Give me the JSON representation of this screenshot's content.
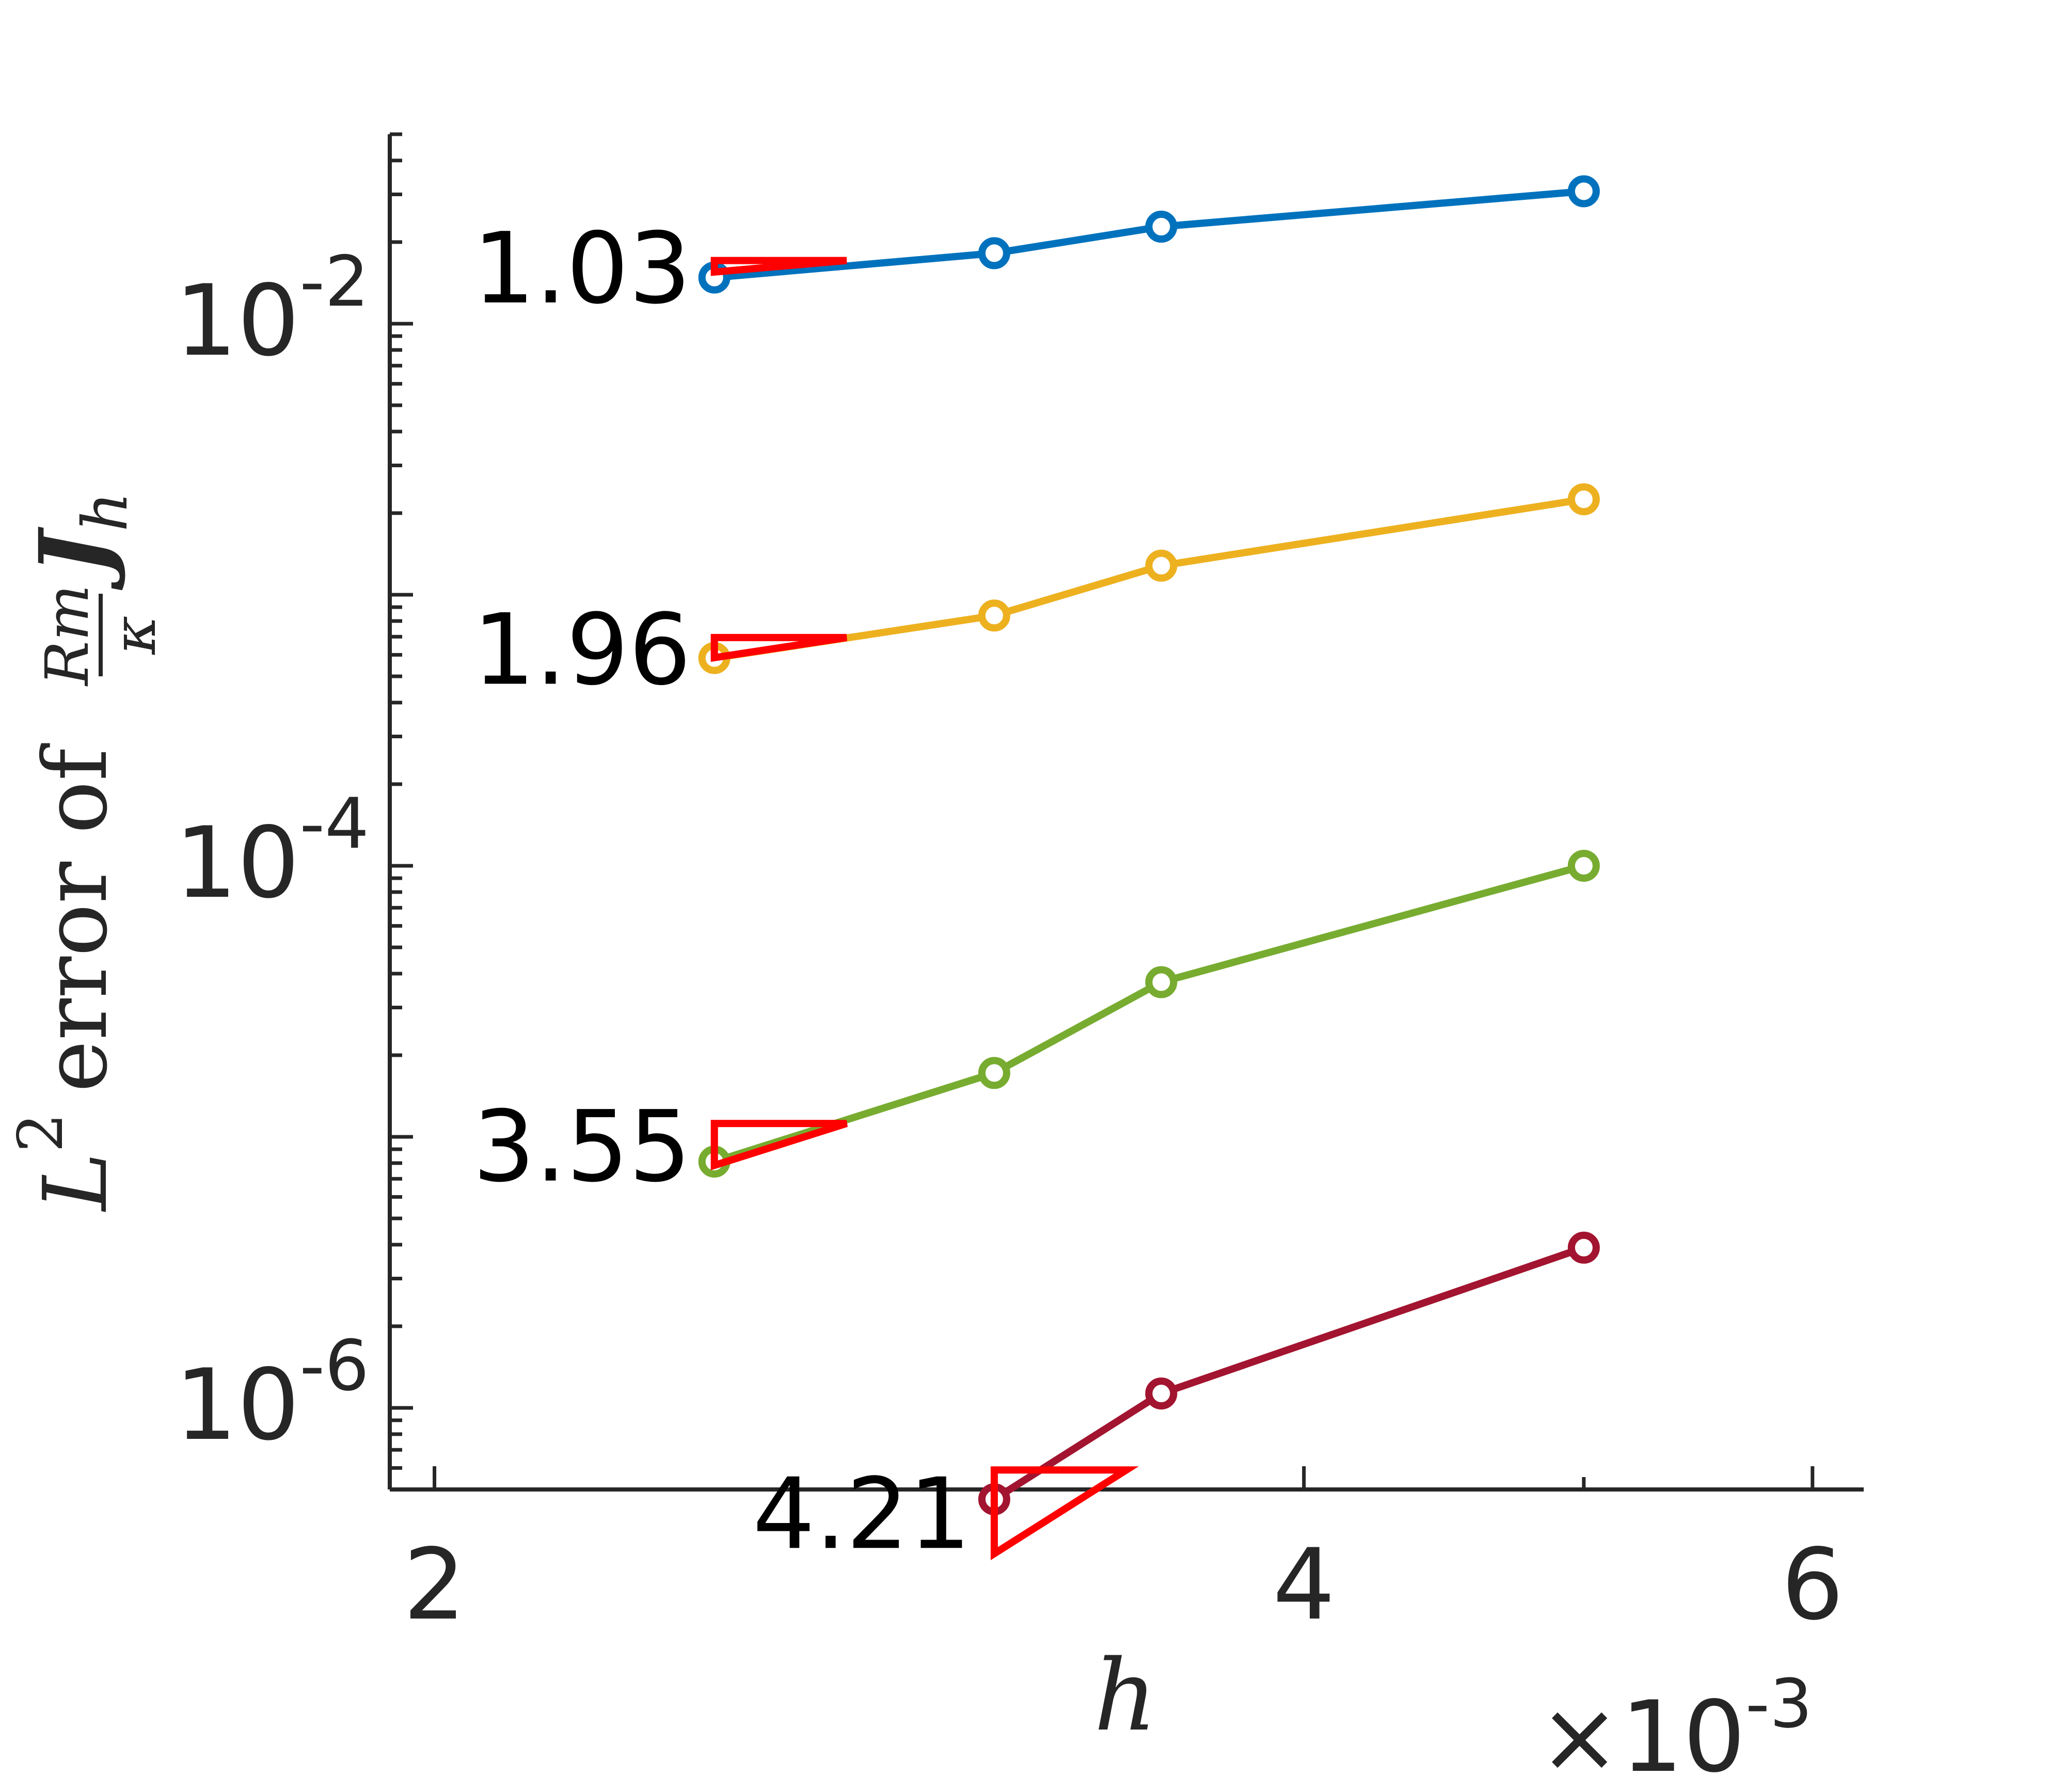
{
  "chart_data": {
    "type": "line",
    "x_scale": "log",
    "y_scale": "log",
    "xlim": [
      0.00193,
      0.00625
    ],
    "ylim": [
      5e-07,
      0.05
    ],
    "xlabel": "h",
    "x_multiplier_label": "10",
    "x_multiplier_exp": "-3",
    "ylabel_parts": {
      "L": "L",
      "sq": "2",
      "error_of": "error of",
      "num": "Rm",
      "den": "κ",
      "J": "J",
      "h": "h"
    },
    "x_ticks": [
      {
        "value": 0.002,
        "label": "2"
      },
      {
        "value": 0.004,
        "label": "4"
      },
      {
        "value": 0.006,
        "label": "6"
      }
    ],
    "y_ticks": [
      {
        "value": 1e-06,
        "base": "10",
        "exp": "-6"
      },
      {
        "value": 0.0001,
        "base": "10",
        "exp": "-4"
      },
      {
        "value": 0.01,
        "base": "10",
        "exp": "-2"
      }
    ],
    "grid": false,
    "series": [
      {
        "color": "#0072BD",
        "x": [
          0.0025,
          0.003125,
          0.00357,
          0.005
        ],
        "y": [
          0.0148,
          0.0182,
          0.0228,
          0.0308
        ]
      },
      {
        "color": "#EDB120",
        "x": [
          0.0025,
          0.003125,
          0.00357,
          0.005
        ],
        "y": [
          0.000584,
          0.000838,
          0.00128,
          0.00225
        ]
      },
      {
        "color": "#77AC30",
        "x": [
          0.0025,
          0.003125,
          0.00357,
          0.005
        ],
        "y": [
          8.1e-06,
          1.72e-05,
          3.72e-05,
          0.0001
        ]
      },
      {
        "color": "#A2142F",
        "x": [
          0.003125,
          0.00357,
          0.005
        ],
        "y": [
          4.6e-07,
          1.13e-06,
          3.9e-06
        ]
      }
    ],
    "slope_annotations": [
      {
        "label": "1.03",
        "x0": 0.0025,
        "x1": 0.002778,
        "y": 0.0171,
        "color": "#FF0000",
        "series": 0
      },
      {
        "label": "1.96",
        "x0": 0.0025,
        "x1": 0.002778,
        "y": 0.000695,
        "color": "#FF0000",
        "series": 1
      },
      {
        "label": "3.55",
        "x0": 0.0025,
        "x1": 0.002778,
        "y": 1.12e-05,
        "color": "#FF0000",
        "series": 2
      },
      {
        "label": "4.21",
        "x0": 0.003125,
        "x1": 0.003472,
        "y": 5.9e-07,
        "color": "#FF0000",
        "series": 3
      }
    ]
  }
}
